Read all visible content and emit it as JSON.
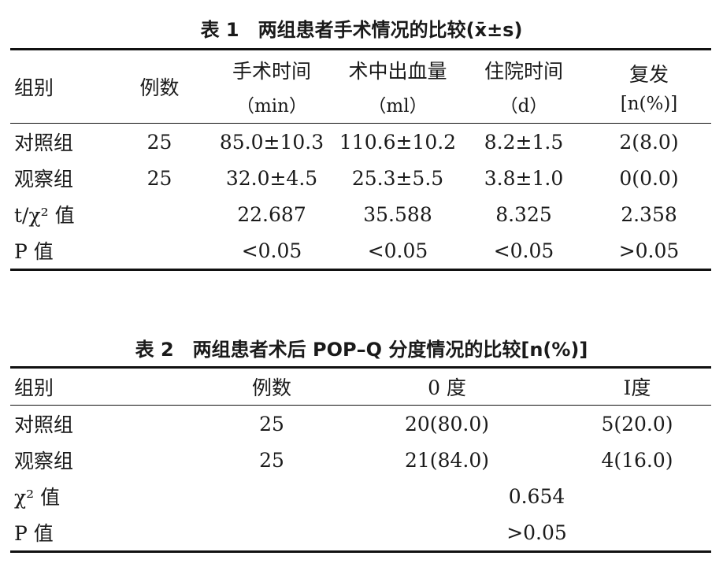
{
  "table1": {
    "title": "表 1　两组患者手术情况的比较(x̄±s)",
    "header": [
      {
        "name": "组别"
      },
      {
        "name": "例数"
      },
      {
        "name": "手术时间",
        "unit": "（min）"
      },
      {
        "name": "术中出血量",
        "unit": "（ml）"
      },
      {
        "name": "住院时间",
        "unit": "（d）"
      },
      {
        "name": "复发",
        "unit": "[n(%)]"
      }
    ],
    "rows": [
      {
        "label": "对照组",
        "cells": [
          "25",
          "85.0±10.3",
          "110.6±10.2",
          "8.2±1.5",
          "2(8.0)"
        ]
      },
      {
        "label": "观察组",
        "cells": [
          "25",
          "32.0±4.5",
          "25.3±5.5",
          "3.8±1.0",
          "0(0.0)"
        ]
      }
    ],
    "stats": [
      {
        "label": "t/χ² 值",
        "cells": [
          "22.687",
          "35.588",
          "8.325",
          "2.358"
        ]
      },
      {
        "label": "P 值",
        "cells": [
          "<0.05",
          "<0.05",
          "<0.05",
          ">0.05"
        ]
      }
    ]
  },
  "table2": {
    "title": "表 2　两组患者术后 POP–Q 分度情况的比较[n(%)]",
    "header": [
      "组别",
      "例数",
      "0 度",
      "Ⅰ度"
    ],
    "rows": [
      {
        "label": "对照组",
        "cells": [
          "25",
          "20(80.0)",
          "5(20.0)"
        ]
      },
      {
        "label": "观察组",
        "cells": [
          "25",
          "21(84.0)",
          "4(16.0)"
        ]
      }
    ],
    "stats": [
      {
        "label": "χ² 值",
        "value": "0.654"
      },
      {
        "label": "P 值",
        "value": ">0.05"
      }
    ]
  }
}
